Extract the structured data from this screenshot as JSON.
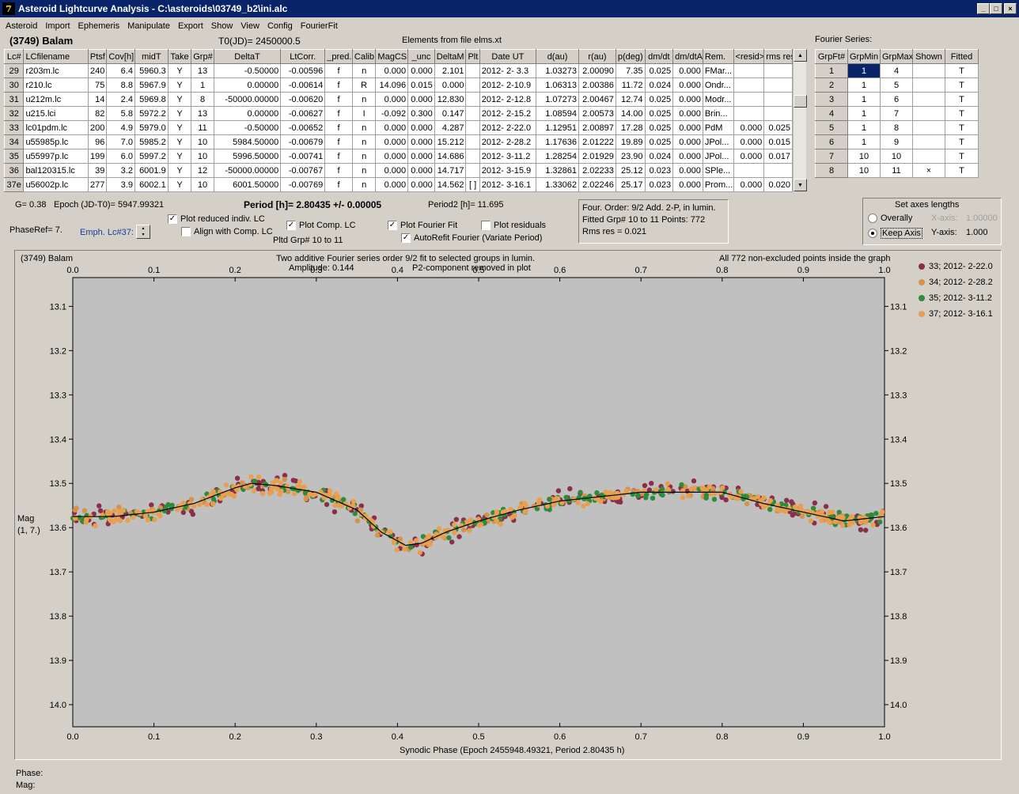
{
  "window": {
    "title": "Asteroid Lightcurve Analysis - C:\\asteroids\\03749_b2\\ini.alc",
    "icon_letter": "7",
    "min": "_",
    "max": "□",
    "close": "×"
  },
  "menu": [
    "Asteroid",
    "Import",
    "Ephemeris",
    "Manipulate",
    "Export",
    "Show",
    "View",
    "Config",
    "FourierFit"
  ],
  "header": {
    "asteroid": "(3749) Balam",
    "t0": "T0(JD)= 2450000.5",
    "elements": "Elements from file elms.xt"
  },
  "table": {
    "columns": [
      "Lc#",
      "LCfilename",
      "Ptsf",
      "Cov[h]",
      "midT",
      "Take",
      "Grp#",
      "DeltaT",
      "LtCorr.",
      "_pred.",
      "Calib.",
      "MagCS",
      "_unc",
      "DeltaM",
      "Plt",
      "Date UT",
      "d(au)",
      "r(au)",
      "p(deg)",
      "dm/dt",
      "dm/dtA",
      "Rem.",
      "<resid>",
      "rms res"
    ],
    "rows": [
      [
        "29",
        "r203m.lc",
        "240",
        "6.4",
        "5960.3",
        "Y",
        "13",
        "-0.50000",
        "-0.00596",
        "f",
        "n",
        "0.000",
        "0.000",
        "2.101",
        "",
        "2012- 2- 3.3",
        "1.03273",
        "2.00090",
        "7.35",
        "0.025",
        "0.000",
        "FMar...",
        "",
        ""
      ],
      [
        "30",
        "r210.lc",
        "75",
        "8.8",
        "5967.9",
        "Y",
        "1",
        "0.00000",
        "-0.00614",
        "f",
        "R",
        "14.096",
        "0.015",
        "0.000",
        "",
        "2012- 2-10.9",
        "1.06313",
        "2.00386",
        "11.72",
        "0.024",
        "0.000",
        "Ondr...",
        "",
        ""
      ],
      [
        "31",
        "u212m.lc",
        "14",
        "2.4",
        "5969.8",
        "Y",
        "8",
        "-50000.00000",
        "-0.00620",
        "f",
        "n",
        "0.000",
        "0.000",
        "12.830",
        "",
        "2012- 2-12.8",
        "1.07273",
        "2.00467",
        "12.74",
        "0.025",
        "0.000",
        "Modr...",
        "",
        ""
      ],
      [
        "32",
        "u215.lci",
        "82",
        "5.8",
        "5972.2",
        "Y",
        "13",
        "0.00000",
        "-0.00627",
        "f",
        "I",
        "-0.092",
        "0.300",
        "0.147",
        "",
        "2012- 2-15.2",
        "1.08594",
        "2.00573",
        "14.00",
        "0.025",
        "0.000",
        "Brin...",
        "",
        ""
      ],
      [
        "33",
        "lc01pdm.lc",
        "200",
        "4.9",
        "5979.0",
        "Y",
        "11",
        "-0.50000",
        "-0.00652",
        "f",
        "n",
        "0.000",
        "0.000",
        "4.287",
        "",
        "2012- 2-22.0",
        "1.12951",
        "2.00897",
        "17.28",
        "0.025",
        "0.000",
        "PdM",
        "0.000",
        "0.025"
      ],
      [
        "34",
        "u55985p.lc",
        "96",
        "7.0",
        "5985.2",
        "Y",
        "10",
        "5984.50000",
        "-0.00679",
        "f",
        "n",
        "0.000",
        "0.000",
        "15.212",
        "",
        "2012- 2-28.2",
        "1.17636",
        "2.01222",
        "19.89",
        "0.025",
        "0.000",
        "JPol...",
        "0.000",
        "0.015"
      ],
      [
        "35",
        "u55997p.lc",
        "199",
        "6.0",
        "5997.2",
        "Y",
        "10",
        "5996.50000",
        "-0.00741",
        "f",
        "n",
        "0.000",
        "0.000",
        "14.686",
        "",
        "2012- 3-11.2",
        "1.28254",
        "2.01929",
        "23.90",
        "0.024",
        "0.000",
        "JPol...",
        "0.000",
        "0.017"
      ],
      [
        "36",
        "bal120315.lc",
        "39",
        "3.2",
        "6001.9",
        "Y",
        "12",
        "-50000.00000",
        "-0.00767",
        "f",
        "n",
        "0.000",
        "0.000",
        "14.717",
        "",
        "2012- 3-15.9",
        "1.32861",
        "2.02233",
        "25.12",
        "0.023",
        "0.000",
        "SPle...",
        "",
        ""
      ],
      [
        "37e",
        "u56002p.lc",
        "277",
        "3.9",
        "6002.1",
        "Y",
        "10",
        "6001.50000",
        "-0.00769",
        "f",
        "n",
        "0.000",
        "0.000",
        "14.562",
        "[ ]",
        "2012- 3-16.1",
        "1.33062",
        "2.02246",
        "25.17",
        "0.023",
        "0.000",
        "Prom...",
        "0.000",
        "0.020"
      ]
    ]
  },
  "fourier": {
    "title": "Fourier Series:",
    "columns": [
      "GrpFt#",
      "GrpMin",
      "GrpMax",
      "Shown",
      "Fitted"
    ],
    "rows": [
      [
        "1",
        "1",
        "4",
        "",
        "T"
      ],
      [
        "2",
        "1",
        "5",
        "",
        "T"
      ],
      [
        "3",
        "1",
        "6",
        "",
        "T"
      ],
      [
        "4",
        "1",
        "7",
        "",
        "T"
      ],
      [
        "5",
        "1",
        "8",
        "",
        "T"
      ],
      [
        "6",
        "1",
        "9",
        "",
        "T"
      ],
      [
        "7",
        "10",
        "10",
        "",
        "T"
      ],
      [
        "8",
        "10",
        "11",
        "×",
        "T"
      ]
    ]
  },
  "info": {
    "g": "G= 0.38",
    "epoch": "Epoch (JD-T0)= 5947.99321",
    "period": "Period [h]= 2.80435 +/- 0.00005",
    "period2": "Period2 [h]= 11.695",
    "phaseref": "PhaseRef= 7.",
    "emph": "Emph. Lc#37:",
    "pltd": "Pltd Grp#  10 to   11"
  },
  "checks": {
    "reduced": {
      "label": "Plot reduced indiv. LC",
      "checked": "✓"
    },
    "align": {
      "label": "Align with Comp. LC",
      "checked": ""
    },
    "comp": {
      "label": "Plot Comp. LC",
      "checked": "✓"
    },
    "fourier": {
      "label": "Plot Fourier Fit",
      "checked": "✓"
    },
    "resid": {
      "label": "Plot residuals",
      "checked": ""
    },
    "autorefit": {
      "label": "AutoRefit Fourier (Variate Period)",
      "checked": "✓"
    }
  },
  "fitbox": {
    "line1": "Four. Order:  9/2     Add. 2-P, in lumin.",
    "line2": "Fitted Grp# 10 to 11 Points: 772",
    "line3": "Rms res      = 0.021"
  },
  "axes": {
    "title": "Set axes lengths",
    "overall": "Overally",
    "keep": "Keep Axis",
    "xlabel": "X-axis:",
    "xval": "1.00000",
    "ylabel": "Y-axis:",
    "yval": "1.000"
  },
  "plot": {
    "name": "(3749) Balam",
    "sub1": "Two additive Fourier series order 9/2 fit to selected groups in lumin.",
    "sub2": "Amplitude: 0.144",
    "sub3": "P2-component removed in plot",
    "right": "All 772 non-excluded points inside the graph",
    "ylabel1": "Mag",
    "ylabel2": "(1, 7.)",
    "xlabel": "Synodic Phase (Epoch 2455948.49321, Period 2.80435 h)"
  },
  "chart_data": {
    "type": "scatter",
    "x_ticks": [
      "0.0",
      "0.1",
      "0.2",
      "0.3",
      "0.4",
      "0.5",
      "0.6",
      "0.7",
      "0.8",
      "0.9",
      "1.0"
    ],
    "y_ticks": [
      "13.1",
      "13.2",
      "13.3",
      "13.4",
      "13.5",
      "13.6",
      "13.7",
      "13.8",
      "13.9",
      "14.0"
    ],
    "xlim": [
      0,
      1
    ],
    "ylim": [
      13.035,
      14.05
    ],
    "series": [
      {
        "name": "33; 2012- 2-22.0",
        "color": "#8b2e4a"
      },
      {
        "name": "34; 2012- 2-28.2",
        "color": "#d4924a"
      },
      {
        "name": "35; 2012- 3-11.2",
        "color": "#2e8b3a"
      },
      {
        "name": "37; 2012- 3-16.1",
        "color": "#e8a050"
      }
    ],
    "fit_curve": {
      "x": [
        0.0,
        0.05,
        0.1,
        0.15,
        0.2,
        0.22,
        0.25,
        0.3,
        0.35,
        0.38,
        0.41,
        0.43,
        0.46,
        0.5,
        0.55,
        0.6,
        0.65,
        0.7,
        0.75,
        0.8,
        0.85,
        0.9,
        0.95,
        1.0
      ],
      "y": [
        13.575,
        13.575,
        13.565,
        13.545,
        13.51,
        13.5,
        13.505,
        13.52,
        13.56,
        13.61,
        13.64,
        13.635,
        13.61,
        13.585,
        13.56,
        13.54,
        13.53,
        13.52,
        13.52,
        13.52,
        13.545,
        13.565,
        13.585,
        13.575
      ]
    }
  },
  "status": {
    "phase": "Phase:",
    "mag": "Mag:"
  }
}
